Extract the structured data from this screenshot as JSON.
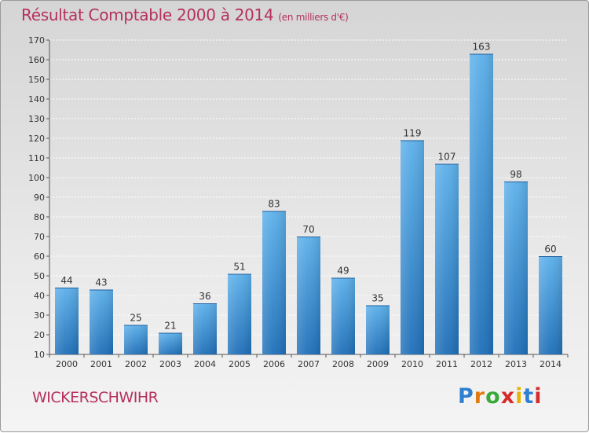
{
  "chart_data": {
    "type": "bar",
    "title": "Résultat Comptable 2000 à 2014",
    "subtitle": "(en milliers d'€)",
    "categories": [
      "2000",
      "2001",
      "2002",
      "2003",
      "2004",
      "2005",
      "2006",
      "2007",
      "2008",
      "2009",
      "2010",
      "2011",
      "2012",
      "2013",
      "2014"
    ],
    "values": [
      44,
      43,
      25,
      21,
      36,
      51,
      83,
      70,
      49,
      35,
      119,
      107,
      163,
      98,
      60
    ],
    "ylim": [
      10,
      170
    ],
    "yticks": [
      10,
      20,
      30,
      40,
      50,
      60,
      70,
      80,
      90,
      100,
      110,
      120,
      130,
      140,
      150,
      160,
      170
    ],
    "xlabel": "",
    "ylabel": "",
    "grid": true,
    "bar_color": "#3a8fd6"
  },
  "location": "WICKERSCHWIHR",
  "brand": [
    "P",
    "r",
    "o",
    "x",
    "i",
    "t",
    "i"
  ],
  "colors": {
    "title": "#b5305f",
    "brand": [
      "#2f7fd1",
      "#e07a10",
      "#3aa83a",
      "#d72b2b",
      "#e8b400",
      "#2f7fd1",
      "#d72b2b"
    ]
  }
}
